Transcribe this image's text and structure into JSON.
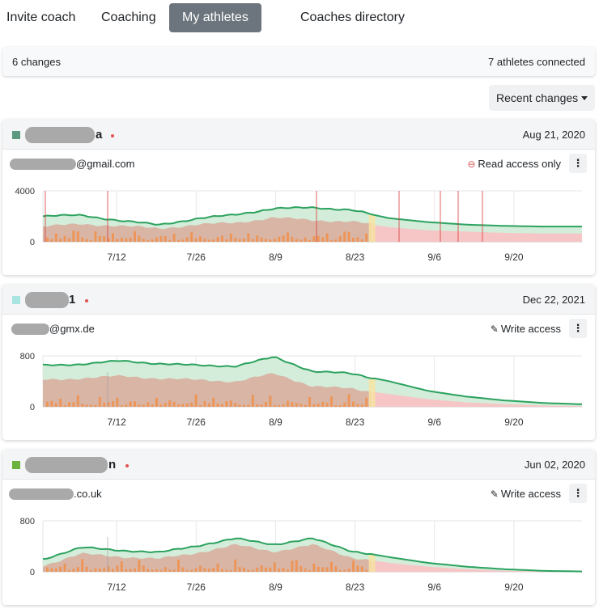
{
  "nav": {
    "tabs": [
      {
        "label": "Invite coach"
      },
      {
        "label": "Coaching"
      },
      {
        "label": "My athletes"
      },
      {
        "label": "Coaches directory"
      }
    ]
  },
  "summary": {
    "changes": "6 changes",
    "connected": "7 athletes connected"
  },
  "sort_menu": {
    "label": "Recent changes"
  },
  "colors": {
    "fitness": "#2ca25f",
    "fitness_fill": "#d4edda",
    "fatigue_fill": "#d9b5a6",
    "form_fill": "#f6c5c5",
    "bar": "#f0904a",
    "today": "#f8e3a0",
    "event_line": "#d93a3a",
    "read_icon": "#d9534f"
  },
  "athletes": [
    {
      "name_suffix": "a",
      "color": "#5a9a80",
      "date": "Aug 21, 2020",
      "email_suffix": "@gmail.com",
      "access": "Read access only",
      "access_icon": "circle-minus-icon",
      "chart_data": {
        "type": "area",
        "title": "",
        "x": [
          "2020-06-29",
          "2020-07-05",
          "2020-07-12",
          "2020-07-19",
          "2020-07-26",
          "2020-08-02",
          "2020-08-09",
          "2020-08-16",
          "2020-08-23",
          "2020-08-30",
          "2020-09-06",
          "2020-09-13",
          "2020-09-20",
          "2020-09-27",
          "2020-10-02"
        ],
        "x_ticks": [
          "7/12",
          "7/26",
          "8/9",
          "8/23",
          "9/6",
          "9/20"
        ],
        "y_ticks": [
          "4000",
          "0"
        ],
        "ylim": [
          0,
          4000
        ],
        "series": [
          {
            "values": [
              2000,
              2100,
              1650,
              1350,
              1800,
              2150,
              2600,
              2700,
              2500,
              1850,
              1550,
              1350,
              1250,
              1200,
              1200
            ]
          },
          {
            "values": [
              1200,
              1400,
              1250,
              1050,
              1350,
              1500,
              1900,
              1700,
              1600,
              1150,
              900,
              800,
              700,
              650,
              650
            ]
          }
        ],
        "today": "2020-08-26"
      }
    },
    {
      "name_suffix": "1",
      "color": "#a8e4e0",
      "date": "Dec 22, 2021",
      "email_suffix": "@gmx.de",
      "access": "Write access",
      "access_icon": "pencil-icon",
      "chart_data": {
        "type": "area",
        "title": "",
        "x": [
          "2020-06-29",
          "2020-07-05",
          "2020-07-12",
          "2020-07-19",
          "2020-07-26",
          "2020-08-02",
          "2020-08-09",
          "2020-08-16",
          "2020-08-23",
          "2020-08-30",
          "2020-09-06",
          "2020-09-13",
          "2020-09-20",
          "2020-09-27",
          "2020-10-02"
        ],
        "x_ticks": [
          "7/12",
          "7/26",
          "8/9",
          "8/23",
          "9/6",
          "9/20"
        ],
        "y_ticks": [
          "800",
          "0"
        ],
        "ylim": [
          0,
          800
        ],
        "series": [
          {
            "values": [
              650,
              670,
              720,
              680,
              650,
              640,
              780,
              560,
              520,
              400,
              250,
              160,
              100,
              60,
              40
            ]
          },
          {
            "values": [
              420,
              450,
              480,
              450,
              420,
              400,
              520,
              330,
              280,
              200,
              120,
              70,
              40,
              20,
              10
            ]
          }
        ],
        "today": "2020-08-26"
      }
    },
    {
      "name_suffix": "n",
      "color": "#6cb33e",
      "date": "Jun 02, 2020",
      "email_suffix": ".co.uk",
      "access": "Write access",
      "access_icon": "pencil-icon",
      "chart_data": {
        "type": "area",
        "title": "",
        "x": [
          "2020-06-29",
          "2020-07-05",
          "2020-07-12",
          "2020-07-19",
          "2020-07-26",
          "2020-08-02",
          "2020-08-09",
          "2020-08-16",
          "2020-08-23",
          "2020-08-30",
          "2020-09-06",
          "2020-09-13",
          "2020-09-20",
          "2020-09-27",
          "2020-10-02"
        ],
        "x_ticks": [
          "7/12",
          "7/26",
          "8/9",
          "8/23",
          "9/6",
          "9/20"
        ],
        "y_ticks": [
          "800",
          "0"
        ],
        "ylim": [
          0,
          800
        ],
        "series": [
          {
            "values": [
              200,
              380,
              340,
              300,
              410,
              520,
              430,
              520,
              330,
              230,
              140,
              80,
              40,
              15,
              5
            ]
          },
          {
            "values": [
              100,
              280,
              240,
              200,
              300,
              420,
              320,
              420,
              230,
              140,
              80,
              40,
              15,
              5,
              0
            ]
          }
        ],
        "today": "2020-08-26"
      }
    }
  ]
}
